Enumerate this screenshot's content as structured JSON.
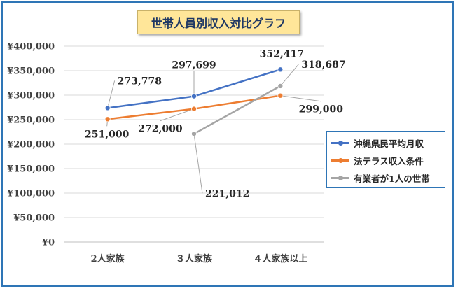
{
  "chart_data": {
    "type": "line",
    "title": "世帯人員別収入対比グラフ",
    "categories": [
      "2人家族",
      "３人家族",
      "４人家族以上"
    ],
    "ylim": [
      0,
      400000
    ],
    "yticks": [
      "¥0",
      "¥50,000",
      "¥100,000",
      "¥150,000",
      "¥200,000",
      "¥250,000",
      "¥300,000",
      "¥350,000",
      "¥400,000"
    ],
    "grid": true,
    "legend_position": "right",
    "series": [
      {
        "name": "沖縄県民平均月収",
        "color": "#4472c4",
        "values": [
          273778,
          297699,
          352417
        ],
        "labels": [
          "273,778",
          "297,699",
          "352,417"
        ]
      },
      {
        "name": "法テラス収入条件",
        "color": "#ed7d31",
        "values": [
          251000,
          272000,
          299000
        ],
        "labels": [
          "251,000",
          "272,000",
          "299,000"
        ]
      },
      {
        "name": "有業者が1人の世帯",
        "color": "#a5a5a5",
        "values": [
          null,
          221012,
          318687
        ],
        "labels": [
          "",
          "221,012",
          "318,687"
        ]
      }
    ]
  }
}
